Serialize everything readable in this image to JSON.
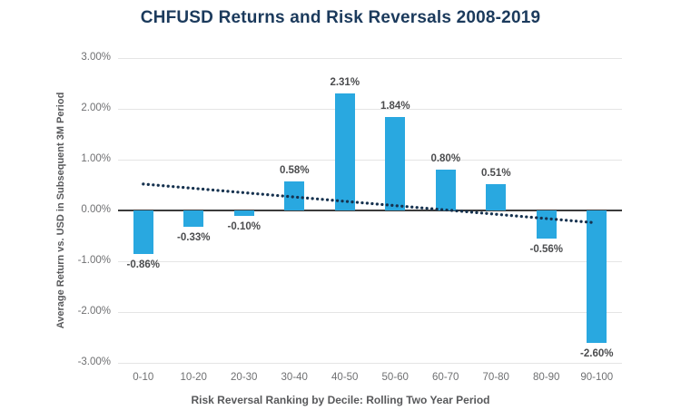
{
  "colors": {
    "bar": "#29a8e0",
    "title_text": "#1b3a5c",
    "trend": "#16324f",
    "grid": "#e5e5e5",
    "zero_line": "#3c3c3c",
    "tick_label": "#6f7072",
    "bar_label": "#4b4c4e",
    "axis_title": "#58595b"
  },
  "chart_data": {
    "type": "bar",
    "title": "CHFUSD Returns and Risk Reversals 2008-2019",
    "categories": [
      "0-10",
      "10-20",
      "20-30",
      "30-40",
      "40-50",
      "50-60",
      "60-70",
      "70-80",
      "80-90",
      "90-100"
    ],
    "values": [
      -0.86,
      -0.33,
      -0.1,
      0.58,
      2.31,
      1.84,
      0.8,
      0.51,
      -0.56,
      -2.6
    ],
    "value_labels": [
      "-0.86%",
      "-0.33%",
      "-0.10%",
      "0.58%",
      "2.31%",
      "1.84%",
      "0.80%",
      "0.51%",
      "-0.56%",
      "-2.60%"
    ],
    "xlabel": "Risk Reversal Ranking by Decile: Rolling Two Year Period",
    "ylabel": "Average Return vs. USD in Subsequent 3M Period",
    "ylim": [
      -3,
      3
    ],
    "y_ticks": [
      3,
      2,
      1,
      0,
      -1,
      -2,
      -3
    ],
    "y_tick_labels": [
      "3.00%",
      "2.00%",
      "1.00%",
      "0.00%",
      "-1.00%",
      "-2.00%",
      "-3.00%"
    ],
    "grid": true,
    "legend": "none",
    "trendline": {
      "style": "dotted",
      "start_value": 0.52,
      "end_value": -0.24
    }
  }
}
